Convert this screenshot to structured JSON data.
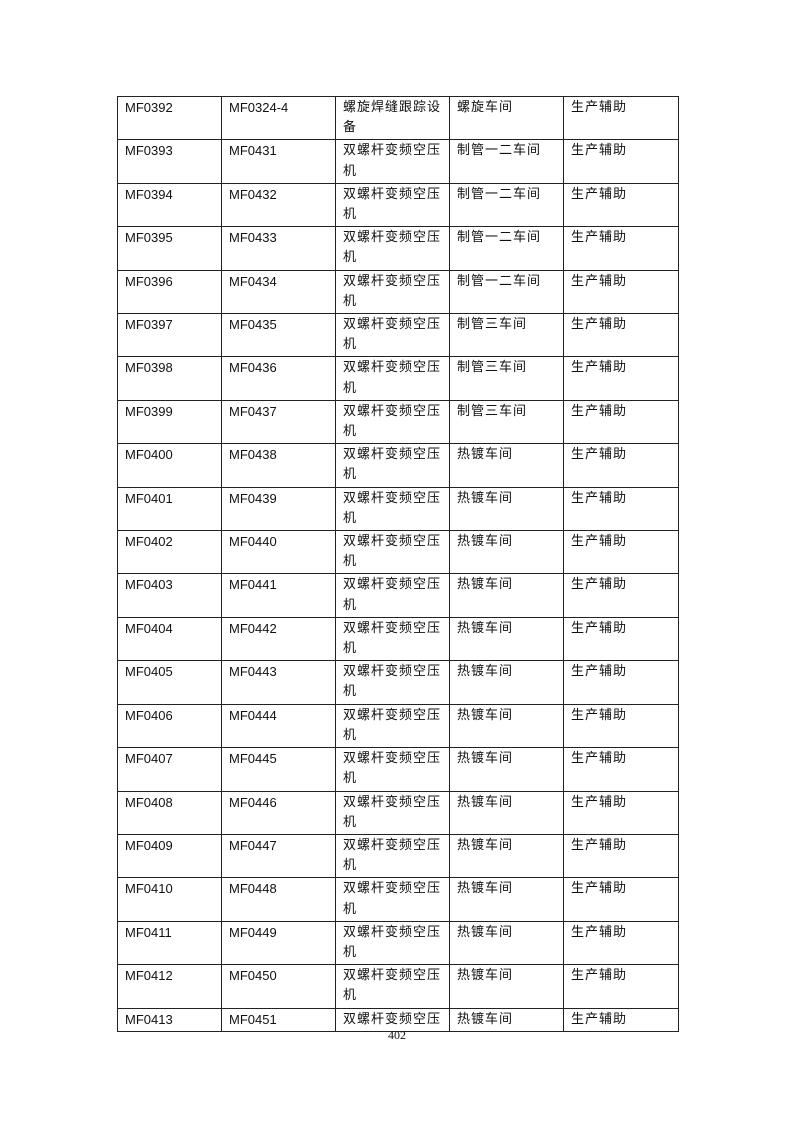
{
  "table": {
    "rows": [
      [
        "MF0392",
        "MF0324-4",
        "螺旋焊缝跟踪设备",
        "螺旋车间",
        "生产辅助"
      ],
      [
        "MF0393",
        "MF0431",
        "双螺杆变频空压机",
        "制管一二车间",
        "生产辅助"
      ],
      [
        "MF0394",
        "MF0432",
        "双螺杆变频空压机",
        "制管一二车间",
        "生产辅助"
      ],
      [
        "MF0395",
        "MF0433",
        "双螺杆变频空压机",
        "制管一二车间",
        "生产辅助"
      ],
      [
        "MF0396",
        "MF0434",
        "双螺杆变频空压机",
        "制管一二车间",
        "生产辅助"
      ],
      [
        "MF0397",
        "MF0435",
        "双螺杆变频空压机",
        "制管三车间",
        "生产辅助"
      ],
      [
        "MF0398",
        "MF0436",
        "双螺杆变频空压机",
        "制管三车间",
        "生产辅助"
      ],
      [
        "MF0399",
        "MF0437",
        "双螺杆变频空压机",
        "制管三车间",
        "生产辅助"
      ],
      [
        "MF0400",
        "MF0438",
        "双螺杆变频空压机",
        "热镀车间",
        "生产辅助"
      ],
      [
        "MF0401",
        "MF0439",
        "双螺杆变频空压机",
        "热镀车间",
        "生产辅助"
      ],
      [
        "MF0402",
        "MF0440",
        "双螺杆变频空压机",
        "热镀车间",
        "生产辅助"
      ],
      [
        "MF0403",
        "MF0441",
        "双螺杆变频空压机",
        "热镀车间",
        "生产辅助"
      ],
      [
        "MF0404",
        "MF0442",
        "双螺杆变频空压机",
        "热镀车间",
        "生产辅助"
      ],
      [
        "MF0405",
        "MF0443",
        "双螺杆变频空压机",
        "热镀车间",
        "生产辅助"
      ],
      [
        "MF0406",
        "MF0444",
        "双螺杆变频空压机",
        "热镀车间",
        "生产辅助"
      ],
      [
        "MF0407",
        "MF0445",
        "双螺杆变频空压机",
        "热镀车间",
        "生产辅助"
      ],
      [
        "MF0408",
        "MF0446",
        "双螺杆变频空压机",
        "热镀车间",
        "生产辅助"
      ],
      [
        "MF0409",
        "MF0447",
        "双螺杆变频空压机",
        "热镀车间",
        "生产辅助"
      ],
      [
        "MF0410",
        "MF0448",
        "双螺杆变频空压机",
        "热镀车间",
        "生产辅助"
      ],
      [
        "MF0411",
        "MF0449",
        "双螺杆变频空压机",
        "热镀车间",
        "生产辅助"
      ],
      [
        "MF0412",
        "MF0450",
        "双螺杆变频空压机",
        "热镀车间",
        "生产辅助"
      ],
      [
        "MF0413",
        "MF0451",
        "双螺杆变频空压",
        "热镀车间",
        "生产辅助"
      ]
    ]
  },
  "footer": {
    "page_number": "402"
  }
}
